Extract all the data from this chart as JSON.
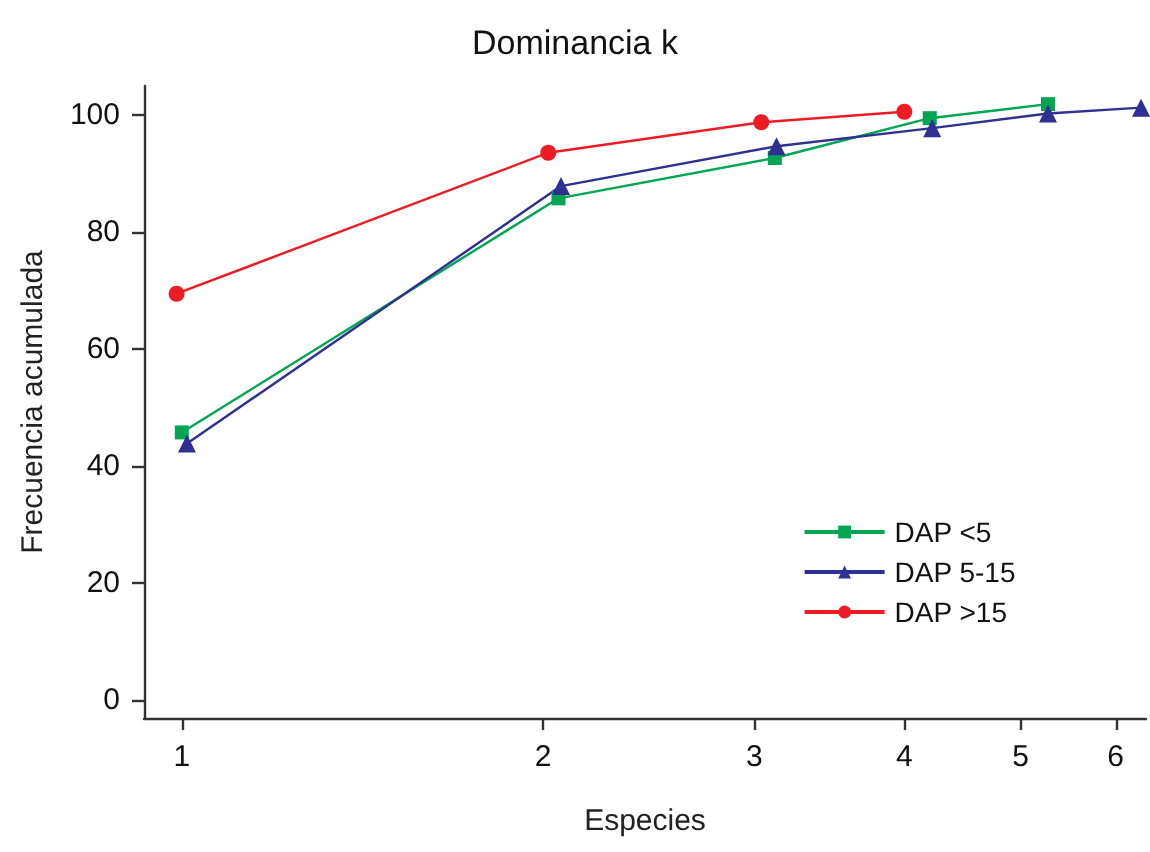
{
  "chart_data": {
    "type": "line",
    "title": "Dominancia k",
    "xlabel": "Especies",
    "ylabel": "Frecuencia acumulada",
    "log": "x",
    "xlim": [
      0.93,
      6.36
    ],
    "xticks": [
      1,
      2,
      3,
      4,
      5,
      6
    ],
    "ylim": [
      -3,
      105
    ],
    "yticks": [
      0,
      20,
      40,
      60,
      80,
      100
    ],
    "grid": false,
    "legend": "bottom right",
    "series": [
      {
        "name": "DAP <5",
        "color": "#00a651",
        "marker": "square",
        "x": [
          1.0,
          2.06,
          3.12,
          4.2,
          5.27
        ],
        "values": [
          45.8,
          85.8,
          92.7,
          99.5,
          101.9
        ]
      },
      {
        "name": "DAP 5-15",
        "color": "#2e3192",
        "marker": "triangle",
        "x": [
          1.01,
          2.07,
          3.13,
          4.22,
          5.27,
          6.3
        ],
        "values": [
          43.9,
          87.9,
          94.7,
          97.8,
          100.3,
          101.3
        ]
      },
      {
        "name": "DAP >15",
        "color": "#ed1c24",
        "marker": "circle",
        "x": [
          0.99,
          2.02,
          3.04,
          4.0
        ],
        "values": [
          69.5,
          93.6,
          98.8,
          100.6
        ]
      }
    ]
  }
}
